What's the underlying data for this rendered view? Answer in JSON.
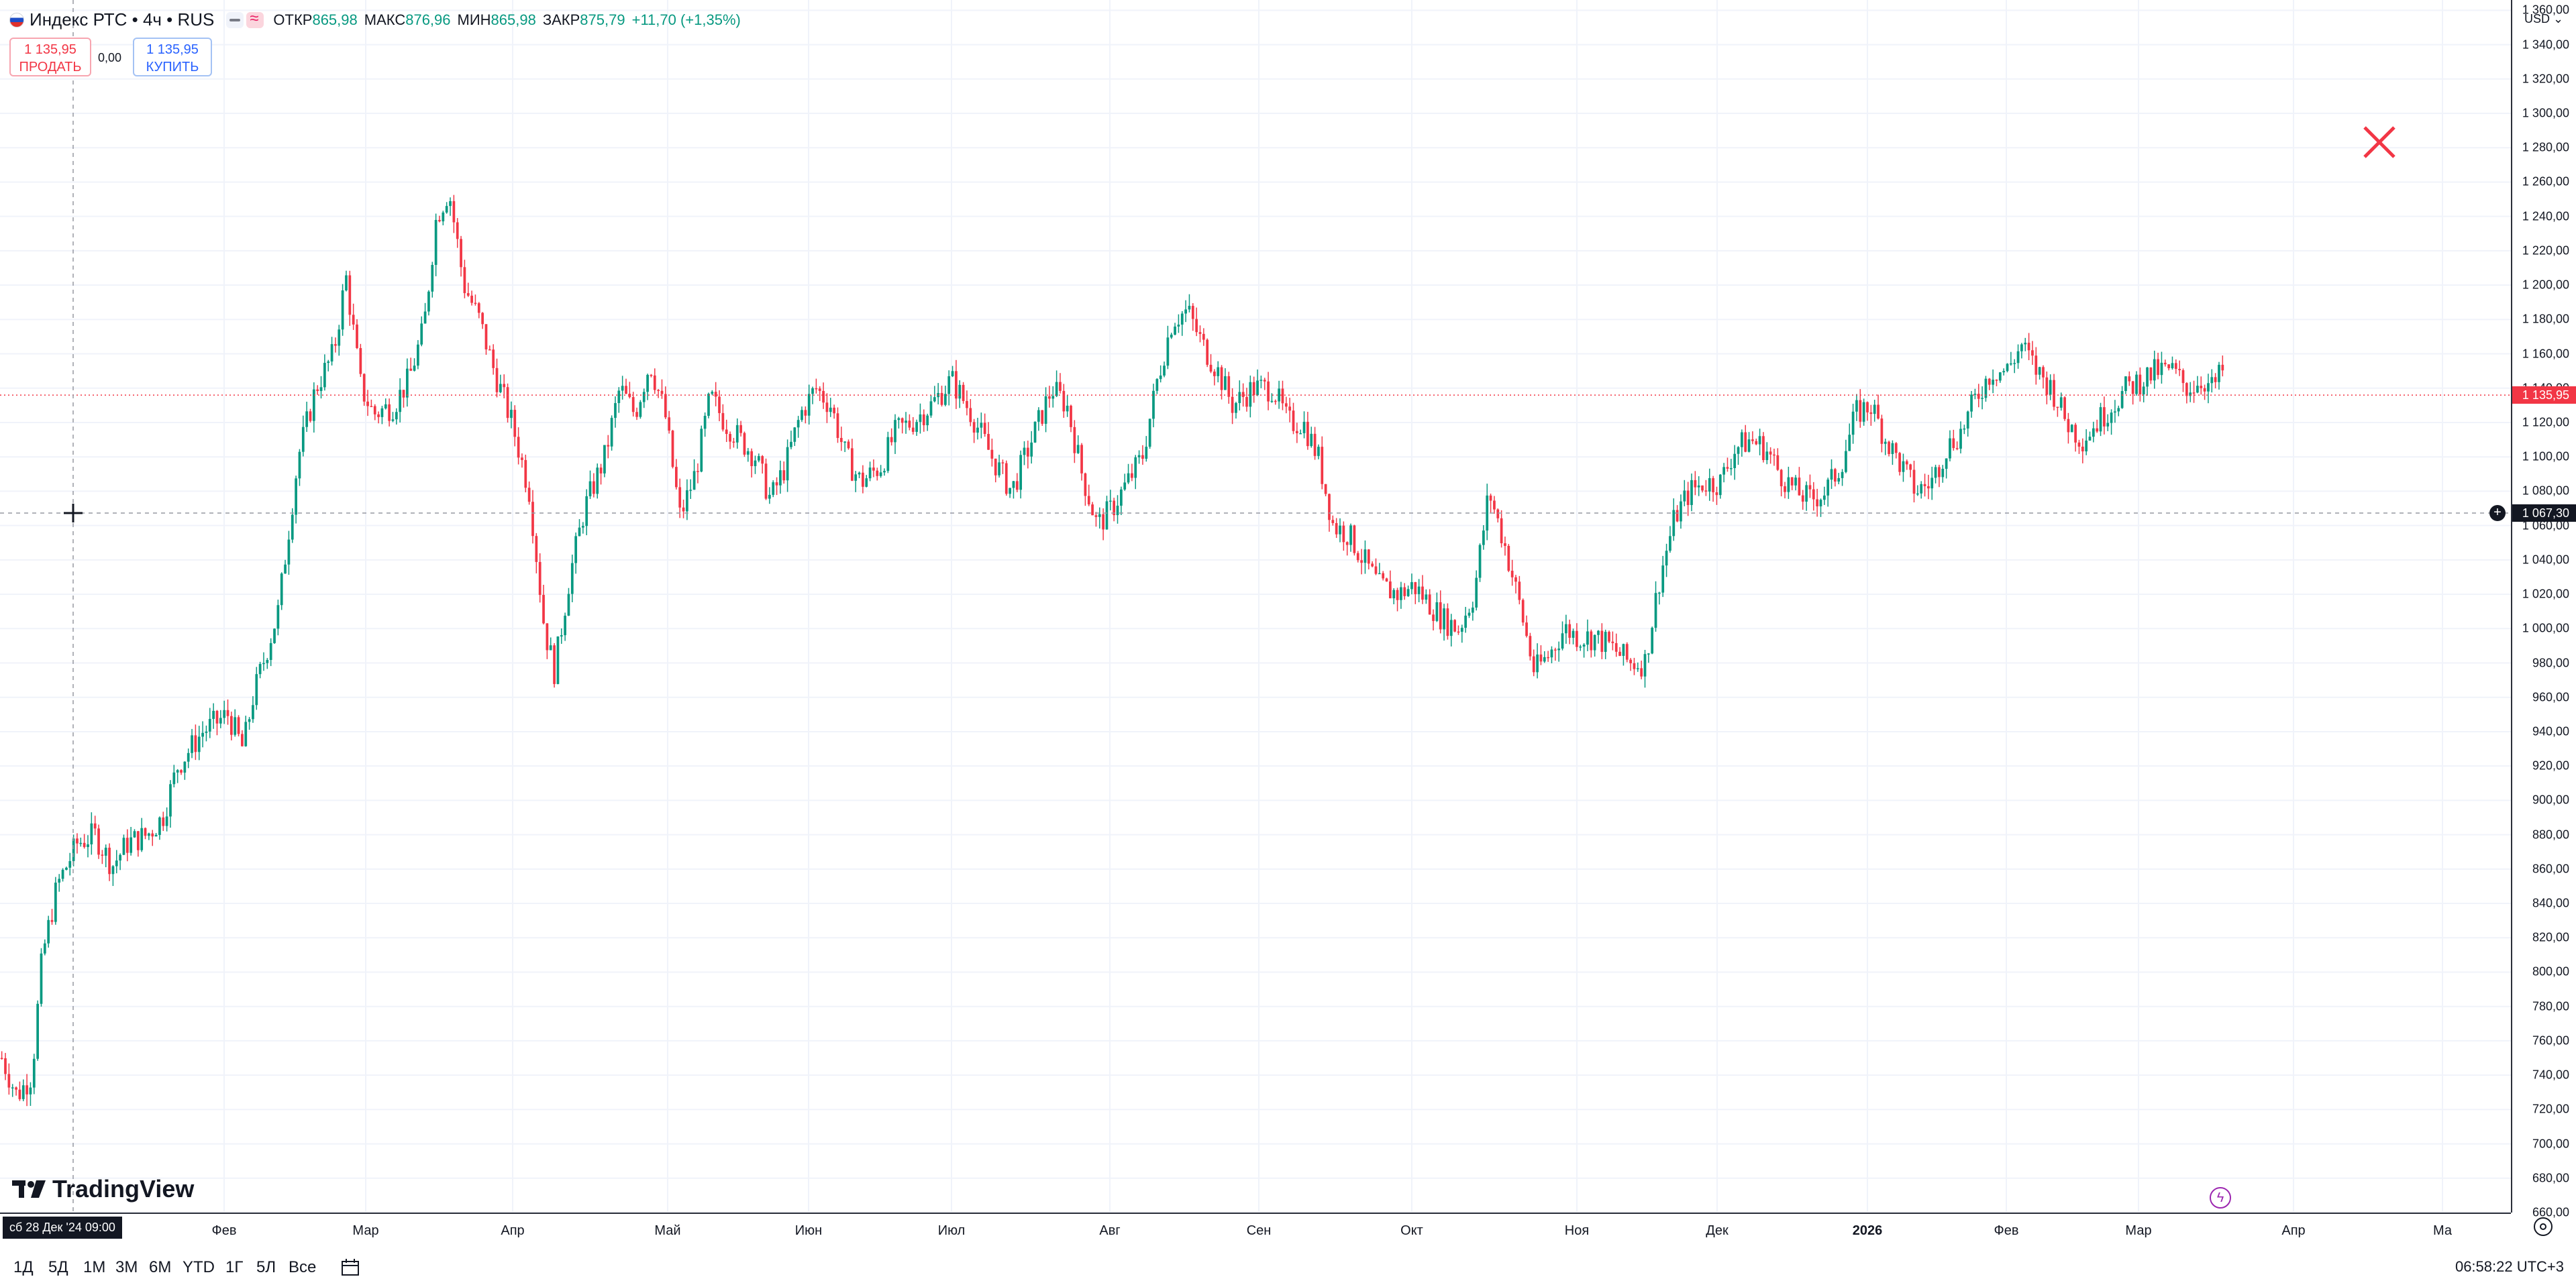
{
  "legend": {
    "symbol": "Индекс РТС • 4ч • RUS",
    "open_label": "ОТКР",
    "open": "865,98",
    "high_label": "МАКС",
    "high": "876,96",
    "low_label": "МИН",
    "low": "865,98",
    "close_label": "ЗАКР",
    "close": "875,79",
    "change": "+11,70 (+1,35%)"
  },
  "trade": {
    "sell_price": "1 135,95",
    "sell_label": "ПРОДАТЬ",
    "spread": "0,00",
    "buy_price": "1 135,95",
    "buy_label": "КУПИТЬ"
  },
  "logo": "TradingView",
  "price_scale": {
    "currency": "USD",
    "crosshair_price": "1 067,30",
    "last_price": "1 135,95",
    "ticks": [
      "1 360,00",
      "1 340,00",
      "1 320,00",
      "1 300,00",
      "1 280,00",
      "1 260,00",
      "1 240,00",
      "1 220,00",
      "1 200,00",
      "1 180,00",
      "1 160,00",
      "1 140,00",
      "1 120,00",
      "1 100,00",
      "1 080,00",
      "1 060,00",
      "1 040,00",
      "1 020,00",
      "1 000,00",
      "980,00",
      "960,00",
      "940,00",
      "920,00",
      "900,00",
      "880,00",
      "860,00",
      "840,00",
      "820,00",
      "800,00",
      "780,00",
      "760,00",
      "740,00",
      "720,00",
      "700,00",
      "680,00",
      "660,00"
    ]
  },
  "time_axis": {
    "crosshair_date": "сб 28 Дек '24   09:00",
    "labels": [
      "Фев",
      "Мар",
      "Апр",
      "Май",
      "Июн",
      "Июл",
      "Авг",
      "Сен",
      "Окт",
      "Ноя",
      "Дек",
      "2026",
      "Фев",
      "Мар",
      "Апр",
      "Ма"
    ]
  },
  "bottom_bar": {
    "ranges": [
      "1Д",
      "5Д",
      "1М",
      "3М",
      "6М",
      "YTD",
      "1Г",
      "5Л",
      "Все"
    ],
    "clock": "06:58:22 UTC+3"
  },
  "colors": {
    "up": "#089981",
    "down": "#f23645",
    "grid": "#f0f3fa",
    "crosshair": "#9598a1"
  },
  "icons": [
    "flag-icon",
    "eye-icon",
    "wave-icon",
    "close-icon",
    "tradingview-logo-icon",
    "lightning-icon",
    "plus-icon",
    "calendar-icon",
    "gear-icon"
  ],
  "chart_data": {
    "type": "candlestick",
    "title": "Индекс РТС • 4ч • RUS",
    "ylim": [
      660,
      1366
    ],
    "x_labels": [
      "Фев",
      "Мар",
      "Апр",
      "Май",
      "Июн",
      "Июл",
      "Авг",
      "Сен",
      "Окт",
      "Ноя",
      "Дек",
      "2026",
      "Фев",
      "Мар",
      "Апр"
    ],
    "grid": true,
    "close_path": [
      [
        0,
        750
      ],
      [
        0.006,
        728
      ],
      [
        0.012,
        740
      ],
      [
        0.016,
        808
      ],
      [
        0.022,
        850
      ],
      [
        0.03,
        875
      ],
      [
        0.037,
        880
      ],
      [
        0.044,
        862
      ],
      [
        0.05,
        875
      ],
      [
        0.058,
        880
      ],
      [
        0.064,
        890
      ],
      [
        0.07,
        920
      ],
      [
        0.08,
        940
      ],
      [
        0.09,
        950
      ],
      [
        0.096,
        930
      ],
      [
        0.1,
        960
      ],
      [
        0.11,
        1010
      ],
      [
        0.118,
        1100
      ],
      [
        0.125,
        1140
      ],
      [
        0.132,
        1160
      ],
      [
        0.137,
        1205
      ],
      [
        0.143,
        1140
      ],
      [
        0.148,
        1125
      ],
      [
        0.156,
        1130
      ],
      [
        0.162,
        1145
      ],
      [
        0.168,
        1175
      ],
      [
        0.173,
        1240
      ],
      [
        0.178,
        1255
      ],
      [
        0.184,
        1200
      ],
      [
        0.19,
        1180
      ],
      [
        0.196,
        1150
      ],
      [
        0.203,
        1120
      ],
      [
        0.21,
        1080
      ],
      [
        0.216,
        1000
      ],
      [
        0.22,
        975
      ],
      [
        0.226,
        1030
      ],
      [
        0.232,
        1070
      ],
      [
        0.24,
        1100
      ],
      [
        0.246,
        1140
      ],
      [
        0.252,
        1125
      ],
      [
        0.258,
        1155
      ],
      [
        0.264,
        1125
      ],
      [
        0.27,
        1065
      ],
      [
        0.276,
        1090
      ],
      [
        0.282,
        1135
      ],
      [
        0.288,
        1120
      ],
      [
        0.294,
        1110
      ],
      [
        0.3,
        1100
      ],
      [
        0.306,
        1075
      ],
      [
        0.312,
        1095
      ],
      [
        0.318,
        1125
      ],
      [
        0.324,
        1140
      ],
      [
        0.33,
        1130
      ],
      [
        0.336,
        1100
      ],
      [
        0.342,
        1085
      ],
      [
        0.35,
        1095
      ],
      [
        0.356,
        1115
      ],
      [
        0.362,
        1120
      ],
      [
        0.37,
        1130
      ],
      [
        0.378,
        1145
      ],
      [
        0.386,
        1125
      ],
      [
        0.394,
        1100
      ],
      [
        0.402,
        1080
      ],
      [
        0.41,
        1110
      ],
      [
        0.418,
        1140
      ],
      [
        0.424,
        1130
      ],
      [
        0.43,
        1090
      ],
      [
        0.436,
        1060
      ],
      [
        0.442,
        1070
      ],
      [
        0.448,
        1085
      ],
      [
        0.454,
        1100
      ],
      [
        0.46,
        1145
      ],
      [
        0.466,
        1180
      ],
      [
        0.472,
        1185
      ],
      [
        0.478,
        1165
      ],
      [
        0.484,
        1150
      ],
      [
        0.49,
        1130
      ],
      [
        0.498,
        1140
      ],
      [
        0.506,
        1140
      ],
      [
        0.512,
        1120
      ],
      [
        0.518,
        1120
      ],
      [
        0.524,
        1100
      ],
      [
        0.53,
        1060
      ],
      [
        0.536,
        1055
      ],
      [
        0.542,
        1040
      ],
      [
        0.548,
        1025
      ],
      [
        0.556,
        1020
      ],
      [
        0.562,
        1025
      ],
      [
        0.568,
        1015
      ],
      [
        0.574,
        1005
      ],
      [
        0.58,
        1000
      ],
      [
        0.586,
        1020
      ],
      [
        0.592,
        1080
      ],
      [
        0.598,
        1050
      ],
      [
        0.604,
        1015
      ],
      [
        0.61,
        975
      ],
      [
        0.616,
        985
      ],
      [
        0.622,
        1000
      ],
      [
        0.628,
        995
      ],
      [
        0.634,
        995
      ],
      [
        0.64,
        990
      ],
      [
        0.648,
        980
      ],
      [
        0.654,
        980
      ],
      [
        0.66,
        1030
      ],
      [
        0.666,
        1065
      ],
      [
        0.672,
        1080
      ],
      [
        0.678,
        1085
      ],
      [
        0.684,
        1085
      ],
      [
        0.69,
        1105
      ],
      [
        0.696,
        1110
      ],
      [
        0.702,
        1105
      ],
      [
        0.708,
        1090
      ],
      [
        0.714,
        1080
      ],
      [
        0.72,
        1075
      ],
      [
        0.726,
        1080
      ],
      [
        0.732,
        1095
      ],
      [
        0.738,
        1125
      ],
      [
        0.744,
        1130
      ],
      [
        0.75,
        1110
      ],
      [
        0.756,
        1095
      ],
      [
        0.762,
        1080
      ],
      [
        0.768,
        1085
      ],
      [
        0.774,
        1105
      ],
      [
        0.78,
        1115
      ],
      [
        0.786,
        1135
      ],
      [
        0.792,
        1150
      ],
      [
        0.798,
        1150
      ],
      [
        0.804,
        1165
      ],
      [
        0.81,
        1150
      ],
      [
        0.816,
        1140
      ],
      [
        0.822,
        1120
      ],
      [
        0.828,
        1110
      ],
      [
        0.834,
        1120
      ],
      [
        0.84,
        1130
      ],
      [
        0.846,
        1140
      ],
      [
        0.852,
        1145
      ],
      [
        0.858,
        1150
      ],
      [
        0.864,
        1150
      ],
      [
        0.87,
        1140
      ],
      [
        0.876,
        1145
      ],
      [
        0.88,
        1140
      ],
      [
        0.884,
        1150
      ]
    ]
  }
}
